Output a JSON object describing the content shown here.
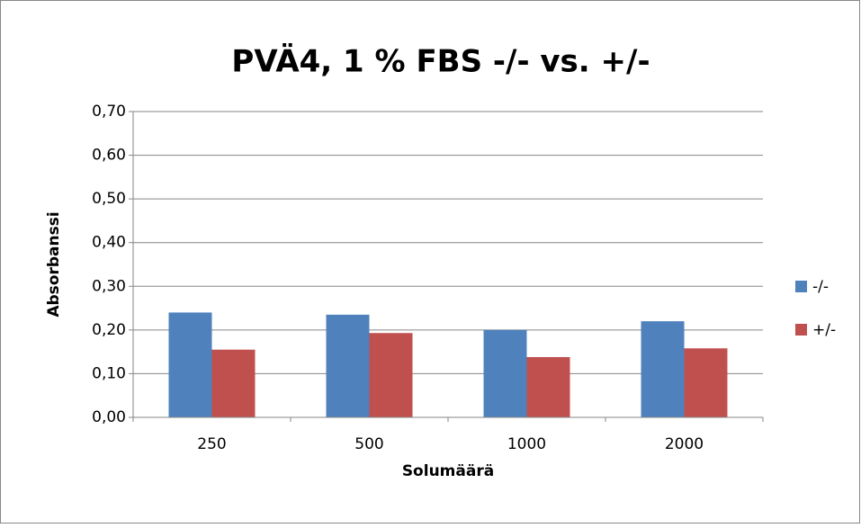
{
  "chart_data": {
    "type": "bar",
    "title": "PVÄ4, 1 % FBS -/- vs. +/-",
    "x_label": "Solumäärä",
    "y_label": "Absorbanssi",
    "categories": [
      "250",
      "500",
      "1000",
      "2000"
    ],
    "series": [
      {
        "name": "-/-",
        "color": "#4f81bd",
        "values": [
          0.24,
          0.235,
          0.2,
          0.22
        ]
      },
      {
        "name": "+/-",
        "color": "#c0504d",
        "values": [
          0.155,
          0.193,
          0.138,
          0.158
        ]
      }
    ],
    "ylim": [
      0,
      0.7
    ],
    "yticks": [
      {
        "value": 0,
        "label": "0,00"
      },
      {
        "value": 0.1,
        "label": "0,10"
      },
      {
        "value": 0.2,
        "label": "0,20"
      },
      {
        "value": 0.3,
        "label": "0,30"
      },
      {
        "value": 0.4,
        "label": "0,40"
      },
      {
        "value": 0.5,
        "label": "0,50"
      },
      {
        "value": 0.6,
        "label": "0,60"
      },
      {
        "value": 0.7,
        "label": "0,70"
      }
    ],
    "grid": true,
    "legend": "right"
  }
}
